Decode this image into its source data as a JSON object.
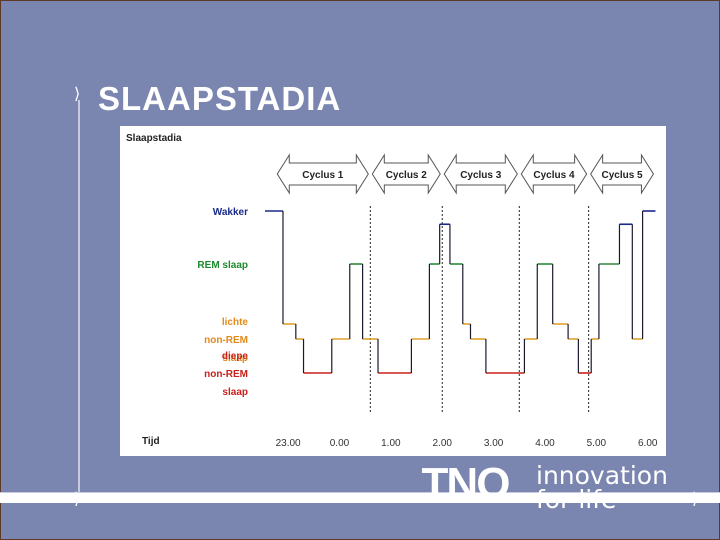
{
  "slide": {
    "title": "SLAAPSTADIA",
    "bullet_glyph": "⟩",
    "slogan_line1": "innovation",
    "slogan_line2": "for life",
    "logo_label": "TNO",
    "colors": {
      "background": "#7b86b0",
      "panel": "#ffffff"
    }
  },
  "chart_data": {
    "type": "line",
    "title": "Slaapstadia",
    "xlabel": "Tijd",
    "x_ticks": [
      "23.00",
      "0.00",
      "1.00",
      "2.00",
      "3.00",
      "4.00",
      "5.00",
      "6.00"
    ],
    "x_tick_values": [
      23.0,
      24.0,
      25.0,
      26.0,
      27.0,
      28.0,
      29.0,
      30.0
    ],
    "xlim": [
      22.55,
      30.2
    ],
    "cycles": [
      {
        "label": "Cyclus 1",
        "start": 22.75,
        "end": 24.6
      },
      {
        "label": "Cyclus 2",
        "start": 24.6,
        "end": 26.0
      },
      {
        "label": "Cyclus 3",
        "start": 26.0,
        "end": 27.5
      },
      {
        "label": "Cyclus 4",
        "start": 27.5,
        "end": 28.85
      },
      {
        "label": "Cyclus 5",
        "start": 28.85,
        "end": 30.15
      }
    ],
    "cycle_boundaries": [
      24.6,
      26.0,
      27.5,
      28.85
    ],
    "stage_labels": [
      {
        "lines": [
          "Wakker"
        ],
        "stage": 3,
        "color": "#1a2a8a"
      },
      {
        "lines": [
          "REM slaap"
        ],
        "stage": 2,
        "color": "#1e8a2e"
      },
      {
        "lines": [
          "lichte",
          "non-REM",
          "slaap"
        ],
        "stage": 1,
        "color": "#e08a1a"
      },
      {
        "lines": [
          "diepe",
          "non-REM",
          "slaap"
        ],
        "stage": 0,
        "color": "#c8201c"
      }
    ],
    "stage_colors": [
      "#c8201c",
      "#e0a030",
      "#2e8a3a",
      "#1a2a8a"
    ],
    "hypnogram": [
      {
        "from": 22.55,
        "to": 22.9,
        "stage": 3
      },
      {
        "from": 22.9,
        "to": 23.15,
        "stage": 1.2
      },
      {
        "from": 23.15,
        "to": 23.3,
        "stage": 1
      },
      {
        "from": 23.3,
        "to": 23.85,
        "stage": 0
      },
      {
        "from": 23.85,
        "to": 24.2,
        "stage": 1
      },
      {
        "from": 24.2,
        "to": 24.45,
        "stage": 2
      },
      {
        "from": 24.45,
        "to": 24.75,
        "stage": 1
      },
      {
        "from": 24.75,
        "to": 25.4,
        "stage": 0
      },
      {
        "from": 25.4,
        "to": 25.75,
        "stage": 1
      },
      {
        "from": 25.75,
        "to": 25.95,
        "stage": 2
      },
      {
        "from": 25.95,
        "to": 26.15,
        "stage": 2.75
      },
      {
        "from": 26.15,
        "to": 26.4,
        "stage": 2
      },
      {
        "from": 26.4,
        "to": 26.55,
        "stage": 1.2
      },
      {
        "from": 26.55,
        "to": 26.85,
        "stage": 1
      },
      {
        "from": 26.85,
        "to": 27.6,
        "stage": 0
      },
      {
        "from": 27.6,
        "to": 27.85,
        "stage": 1
      },
      {
        "from": 27.85,
        "to": 28.15,
        "stage": 2
      },
      {
        "from": 28.15,
        "to": 28.45,
        "stage": 1.2
      },
      {
        "from": 28.45,
        "to": 28.65,
        "stage": 1
      },
      {
        "from": 28.65,
        "to": 28.9,
        "stage": 0
      },
      {
        "from": 28.9,
        "to": 29.05,
        "stage": 1
      },
      {
        "from": 29.05,
        "to": 29.45,
        "stage": 2
      },
      {
        "from": 29.45,
        "to": 29.7,
        "stage": 2.75
      },
      {
        "from": 29.7,
        "to": 29.9,
        "stage": 1
      },
      {
        "from": 29.9,
        "to": 30.15,
        "stage": 3
      }
    ]
  }
}
